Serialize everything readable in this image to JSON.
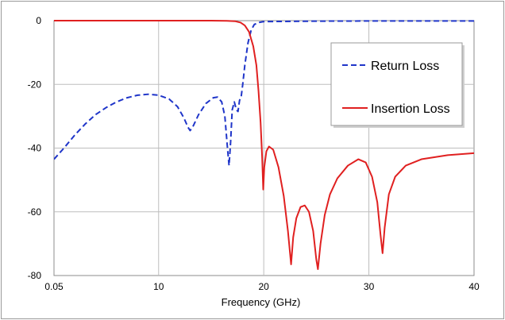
{
  "chart_data": {
    "type": "line",
    "title": "",
    "xlabel": "Frequency (GHz)",
    "ylabel": "",
    "xlim": [
      0.05,
      40
    ],
    "ylim": [
      -80,
      0
    ],
    "xticks": [
      0.05,
      10,
      20,
      30,
      40
    ],
    "xtick_labels": [
      "0.05",
      "10",
      "20",
      "30",
      "40"
    ],
    "yticks": [
      0,
      -20,
      -40,
      -60,
      -80
    ],
    "ytick_labels": [
      "0",
      "-20",
      "-40",
      "-60",
      "-80"
    ],
    "grid": true,
    "legend": {
      "placement": "top-right",
      "entries": [
        "Return Loss",
        "Insertion Loss"
      ]
    },
    "series": [
      {
        "name": "Return Loss",
        "color": "#1f35c9",
        "style": "dashed",
        "points": [
          [
            0.05,
            -43.5
          ],
          [
            1,
            -40
          ],
          [
            2,
            -36
          ],
          [
            3,
            -32.5
          ],
          [
            4,
            -29.5
          ],
          [
            5,
            -27.3
          ],
          [
            6,
            -25.5
          ],
          [
            7,
            -24.2
          ],
          [
            8,
            -23.4
          ],
          [
            9,
            -23.1
          ],
          [
            10,
            -23.4
          ],
          [
            11,
            -24.6
          ],
          [
            11.8,
            -27
          ],
          [
            12.4,
            -30.5
          ],
          [
            12.8,
            -33.5
          ],
          [
            13,
            -34.5
          ],
          [
            13.3,
            -33
          ],
          [
            13.8,
            -29.5
          ],
          [
            14.5,
            -26
          ],
          [
            15.2,
            -24.2
          ],
          [
            15.6,
            -24
          ],
          [
            16,
            -25.5
          ],
          [
            16.3,
            -30
          ],
          [
            16.55,
            -40
          ],
          [
            16.7,
            -45.5
          ],
          [
            16.85,
            -38
          ],
          [
            17,
            -28
          ],
          [
            17.2,
            -25.5
          ],
          [
            17.4,
            -28
          ],
          [
            17.55,
            -28.5
          ],
          [
            17.7,
            -25
          ],
          [
            17.85,
            -24
          ],
          [
            18,
            -20
          ],
          [
            18.2,
            -14
          ],
          [
            18.5,
            -7
          ],
          [
            18.8,
            -3
          ],
          [
            19.1,
            -1.2
          ],
          [
            19.5,
            -0.6
          ],
          [
            20,
            -0.3
          ],
          [
            25,
            -0.15
          ],
          [
            30,
            -0.1
          ],
          [
            35,
            -0.1
          ],
          [
            40,
            -0.1
          ]
        ]
      },
      {
        "name": "Insertion Loss",
        "color": "#e02020",
        "style": "solid",
        "points": [
          [
            0.05,
            0
          ],
          [
            5,
            0
          ],
          [
            10,
            0
          ],
          [
            15,
            0
          ],
          [
            16.5,
            -0.05
          ],
          [
            17.3,
            -0.2
          ],
          [
            17.8,
            -0.6
          ],
          [
            18.2,
            -1.5
          ],
          [
            18.6,
            -3.5
          ],
          [
            19,
            -8
          ],
          [
            19.3,
            -14
          ],
          [
            19.5,
            -22
          ],
          [
            19.7,
            -32
          ],
          [
            19.85,
            -43
          ],
          [
            19.95,
            -53
          ],
          [
            20.05,
            -46
          ],
          [
            20.25,
            -41
          ],
          [
            20.5,
            -39.5
          ],
          [
            20.9,
            -40.5
          ],
          [
            21.4,
            -46
          ],
          [
            21.9,
            -55
          ],
          [
            22.3,
            -66
          ],
          [
            22.6,
            -76.5
          ],
          [
            22.8,
            -68
          ],
          [
            23.1,
            -62
          ],
          [
            23.5,
            -58.5
          ],
          [
            23.9,
            -58
          ],
          [
            24.3,
            -60
          ],
          [
            24.7,
            -66
          ],
          [
            25,
            -75
          ],
          [
            25.15,
            -78
          ],
          [
            25.4,
            -70
          ],
          [
            25.8,
            -61
          ],
          [
            26.3,
            -54.5
          ],
          [
            27,
            -49.5
          ],
          [
            28,
            -45.5
          ],
          [
            29,
            -43.5
          ],
          [
            29.7,
            -44.5
          ],
          [
            30.3,
            -49
          ],
          [
            30.8,
            -57
          ],
          [
            31.1,
            -67
          ],
          [
            31.3,
            -73
          ],
          [
            31.5,
            -65
          ],
          [
            31.9,
            -54.5
          ],
          [
            32.5,
            -49
          ],
          [
            33.5,
            -45.5
          ],
          [
            35,
            -43.5
          ],
          [
            37.5,
            -42.2
          ],
          [
            40,
            -41.6
          ]
        ]
      }
    ]
  }
}
